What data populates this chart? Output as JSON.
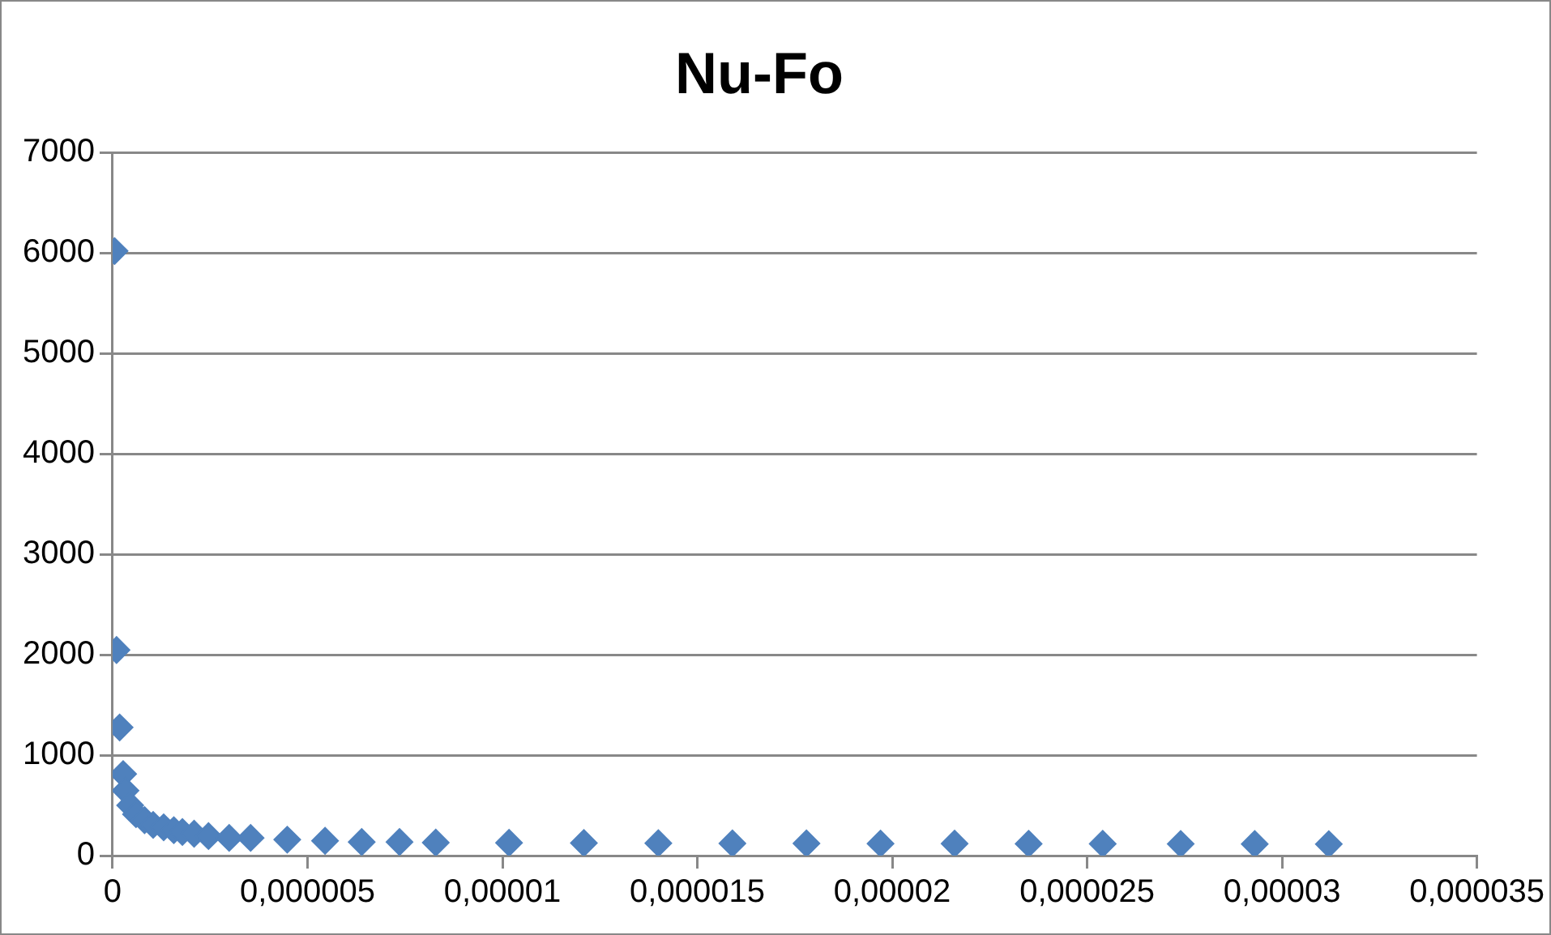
{
  "chart_data": {
    "type": "scatter",
    "title": "Nu-Fo",
    "marker": "diamond",
    "grid": "y",
    "legend": false,
    "series": [
      {
        "color": "#4f81bd",
        "x": [
          5e-08,
          1e-07,
          1.8e-07,
          2.7e-07,
          3.3e-07,
          4.5e-07,
          6e-07,
          8.2e-07,
          1.04e-06,
          1.31e-06,
          1.57e-06,
          1.79e-06,
          2.09e-06,
          2.46e-06,
          2.99e-06,
          3.54e-06,
          4.48e-06,
          5.45e-06,
          6.39e-06,
          7.36e-06,
          8.29e-06,
          1.017e-05,
          1.209e-05,
          1.4e-05,
          1.59e-05,
          1.78e-05,
          1.97e-05,
          2.16e-05,
          2.35e-05,
          2.54e-05,
          2.74e-05,
          2.93e-05,
          3.12e-05
        ],
        "values": [
          6020,
          2047,
          1276,
          812,
          647,
          500,
          412,
          353,
          306,
          282,
          253,
          235,
          218,
          194,
          176,
          176,
          159,
          147,
          135,
          135,
          129,
          127,
          125,
          124,
          122,
          121,
          120,
          119,
          118,
          117,
          116,
          115,
          114
        ]
      }
    ],
    "xlim": [
      0,
      3.5e-05
    ],
    "xticks": [
      {
        "value": 0,
        "label": "0"
      },
      {
        "value": 5e-06,
        "label": "0,000005"
      },
      {
        "value": 1e-05,
        "label": "0,00001"
      },
      {
        "value": 1.5e-05,
        "label": "0,000015"
      },
      {
        "value": 2e-05,
        "label": "0,00002"
      },
      {
        "value": 2.5e-05,
        "label": "0,000025"
      },
      {
        "value": 3e-05,
        "label": "0,00003"
      },
      {
        "value": 3.5e-05,
        "label": "0,000035"
      }
    ],
    "ylim": [
      0,
      7000
    ],
    "yticks": [
      0,
      1000,
      2000,
      3000,
      4000,
      5000,
      6000,
      7000
    ]
  }
}
